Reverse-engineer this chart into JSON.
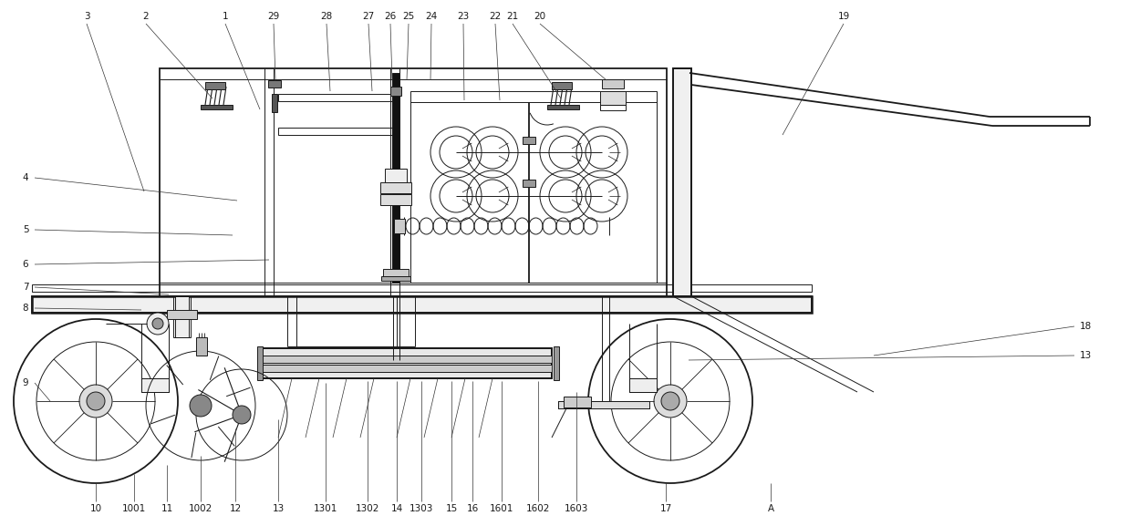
{
  "bg_color": "#ffffff",
  "lc": "#1a1a1a",
  "fig_width": 12.39,
  "fig_height": 5.77,
  "lw": 0.7,
  "lw2": 1.3,
  "lw3": 1.8
}
